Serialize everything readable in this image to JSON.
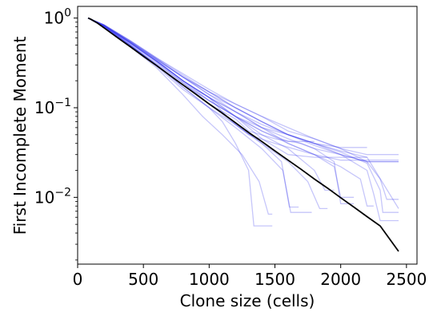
{
  "chart_data": {
    "type": "line",
    "title": "",
    "xlabel": "Clone size (cells)",
    "ylabel": "First Incomplete Moment",
    "xscale": "linear",
    "yscale": "log",
    "xlim": [
      0,
      2580
    ],
    "ylim": [
      0.0018,
      1.35
    ],
    "xticks": [
      0,
      500,
      1000,
      1500,
      2000,
      2500
    ],
    "xtick_labels": [
      "0",
      "500",
      "1000",
      "1500",
      "2000",
      "2500"
    ],
    "yticks": [
      1,
      0.1,
      0.01
    ],
    "ytick_labels": [
      {
        "base": "10",
        "exp": "0"
      },
      {
        "base": "10",
        "exp": "−1"
      },
      {
        "base": "10",
        "exp": "−2"
      }
    ],
    "grid": false,
    "legend": "none",
    "reference": {
      "color": "#000000",
      "x": [
        80,
        100,
        150,
        200,
        300,
        400,
        500,
        600,
        700,
        800,
        900,
        1000,
        1100,
        1200,
        1300,
        1400,
        1500,
        1600,
        1700,
        1800,
        1900,
        2000,
        2100,
        2200,
        2300,
        2440
      ],
      "y": [
        1.0,
        0.97,
        0.88,
        0.78,
        0.61,
        0.48,
        0.375,
        0.295,
        0.23,
        0.18,
        0.141,
        0.11,
        0.087,
        0.068,
        0.053,
        0.042,
        0.033,
        0.026,
        0.0205,
        0.016,
        0.0127,
        0.0099,
        0.0078,
        0.0061,
        0.0048,
        0.0025
      ]
    },
    "simulations": {
      "color": "#3333ee",
      "series": [
        {
          "x": [
            80,
            200,
            400,
            600,
            800,
            1000,
            1100,
            1200,
            1300,
            1340,
            1480
          ],
          "y": [
            1.0,
            0.8,
            0.5,
            0.3,
            0.17,
            0.1,
            0.07,
            0.04,
            0.02,
            0.0048,
            0.0048
          ]
        },
        {
          "x": [
            80,
            200,
            400,
            600,
            800,
            950,
            1100,
            1250,
            1380,
            1450,
            1480
          ],
          "y": [
            1.0,
            0.79,
            0.48,
            0.28,
            0.14,
            0.08,
            0.05,
            0.03,
            0.015,
            0.0065,
            0.0065
          ]
        },
        {
          "x": [
            80,
            200,
            400,
            600,
            800,
            1000,
            1200,
            1400,
            1560,
            1620,
            1780
          ],
          "y": [
            1.0,
            0.8,
            0.49,
            0.29,
            0.16,
            0.1,
            0.06,
            0.035,
            0.02,
            0.0068,
            0.0068
          ]
        },
        {
          "x": [
            80,
            200,
            400,
            600,
            800,
            1000,
            1200,
            1400,
            1550,
            1610,
            1680
          ],
          "y": [
            1.0,
            0.82,
            0.52,
            0.32,
            0.19,
            0.11,
            0.065,
            0.04,
            0.025,
            0.0078,
            0.0078
          ]
        },
        {
          "x": [
            80,
            200,
            400,
            600,
            800,
            1000,
            1200,
            1400,
            1600,
            1750,
            1840,
            1900
          ],
          "y": [
            1.0,
            0.81,
            0.5,
            0.3,
            0.17,
            0.1,
            0.065,
            0.04,
            0.025,
            0.015,
            0.0075,
            0.0075
          ]
        },
        {
          "x": [
            80,
            200,
            400,
            600,
            800,
            1000,
            1200,
            1400,
            1600,
            1800,
            1880,
            1950
          ],
          "y": [
            1.0,
            0.8,
            0.5,
            0.31,
            0.19,
            0.12,
            0.08,
            0.05,
            0.035,
            0.02,
            0.012,
            0.012
          ]
        },
        {
          "x": [
            80,
            200,
            400,
            600,
            800,
            1000,
            1200,
            1400,
            1600,
            1800,
            1950,
            2000,
            2100
          ],
          "y": [
            1.0,
            0.82,
            0.53,
            0.33,
            0.2,
            0.13,
            0.09,
            0.06,
            0.04,
            0.03,
            0.022,
            0.01,
            0.01
          ]
        },
        {
          "x": [
            80,
            200,
            400,
            600,
            800,
            1000,
            1200,
            1400,
            1600,
            1800,
            2000,
            2150,
            2200,
            2250
          ],
          "y": [
            1.0,
            0.83,
            0.54,
            0.34,
            0.2,
            0.13,
            0.08,
            0.055,
            0.04,
            0.03,
            0.022,
            0.016,
            0.008,
            0.008
          ]
        },
        {
          "x": [
            80,
            200,
            400,
            600,
            800,
            1000,
            1200,
            1400,
            1600,
            1800,
            2000,
            2200,
            2250,
            2300,
            2440
          ],
          "y": [
            1.0,
            0.82,
            0.53,
            0.33,
            0.2,
            0.13,
            0.09,
            0.065,
            0.05,
            0.04,
            0.03,
            0.02,
            0.011,
            0.0055,
            0.0055
          ]
        },
        {
          "x": [
            80,
            200,
            400,
            600,
            800,
            1000,
            1200,
            1400,
            1600,
            1800,
            2000,
            2200,
            2300,
            2320,
            2440
          ],
          "y": [
            1.0,
            0.84,
            0.55,
            0.35,
            0.22,
            0.14,
            0.1,
            0.07,
            0.05,
            0.04,
            0.032,
            0.024,
            0.012,
            0.0068,
            0.0068
          ]
        },
        {
          "x": [
            80,
            200,
            400,
            600,
            800,
            1000,
            1200,
            1400,
            1600,
            1800,
            2000,
            2200,
            2300,
            2350,
            2440
          ],
          "y": [
            1.0,
            0.83,
            0.54,
            0.35,
            0.22,
            0.15,
            0.11,
            0.08,
            0.055,
            0.045,
            0.035,
            0.025,
            0.016,
            0.0095,
            0.0095
          ]
        },
        {
          "x": [
            80,
            200,
            400,
            600,
            800,
            1000,
            1200,
            1400,
            1600,
            1800,
            2000,
            2200,
            2440
          ],
          "y": [
            1.0,
            0.84,
            0.56,
            0.36,
            0.23,
            0.15,
            0.1,
            0.07,
            0.05,
            0.04,
            0.033,
            0.028,
            0.0075
          ]
        },
        {
          "x": [
            80,
            200,
            400,
            600,
            800,
            1000,
            1100,
            1200,
            1300,
            1500,
            1700,
            1800,
            2000,
            2200,
            2440
          ],
          "y": [
            1.0,
            0.82,
            0.53,
            0.33,
            0.2,
            0.13,
            0.09,
            0.065,
            0.05,
            0.04,
            0.033,
            0.03,
            0.026,
            0.026,
            0.026
          ]
        },
        {
          "x": [
            80,
            200,
            400,
            600,
            800,
            1000,
            1200,
            1400,
            1600,
            1800,
            2000,
            2200,
            2440
          ],
          "y": [
            1.0,
            0.83,
            0.54,
            0.34,
            0.22,
            0.14,
            0.09,
            0.06,
            0.045,
            0.035,
            0.03,
            0.025,
            0.025
          ]
        },
        {
          "x": [
            80,
            200,
            400,
            600,
            800,
            1000,
            1200,
            1400,
            1600,
            1800,
            2000,
            2200
          ],
          "y": [
            1.0,
            0.82,
            0.52,
            0.33,
            0.2,
            0.13,
            0.08,
            0.045,
            0.03,
            0.028,
            0.028,
            0.028
          ]
        },
        {
          "x": [
            80,
            200,
            400,
            600,
            800,
            1000,
            1200,
            1400,
            1600,
            1800,
            2000,
            2200,
            2440
          ],
          "y": [
            1.0,
            0.84,
            0.56,
            0.36,
            0.24,
            0.16,
            0.11,
            0.08,
            0.06,
            0.045,
            0.035,
            0.03,
            0.03
          ]
        },
        {
          "x": [
            80,
            200,
            400,
            600,
            800,
            1000,
            1200,
            1400,
            1600,
            1800,
            2000,
            2200,
            2440
          ],
          "y": [
            1.0,
            0.83,
            0.55,
            0.35,
            0.22,
            0.15,
            0.1,
            0.07,
            0.05,
            0.038,
            0.03,
            0.025,
            0.025
          ]
        },
        {
          "x": [
            80,
            200,
            400,
            600,
            800,
            1000,
            1200,
            1400,
            1600,
            1800,
            2000,
            2200
          ],
          "y": [
            1.0,
            0.82,
            0.53,
            0.33,
            0.2,
            0.12,
            0.08,
            0.06,
            0.05,
            0.04,
            0.036,
            0.036
          ]
        },
        {
          "x": [
            80,
            200,
            400,
            600,
            800,
            1000,
            1200,
            1400,
            1600,
            1800
          ],
          "y": [
            1.0,
            0.81,
            0.5,
            0.3,
            0.18,
            0.12,
            0.08,
            0.055,
            0.042,
            0.042
          ]
        },
        {
          "x": [
            80,
            200,
            400,
            600,
            800,
            1000,
            1200,
            1300,
            1500,
            1700,
            1800,
            1950,
            2000,
            2100
          ],
          "y": [
            1.0,
            0.8,
            0.5,
            0.3,
            0.18,
            0.11,
            0.075,
            0.055,
            0.045,
            0.04,
            0.035,
            0.025,
            0.0085,
            0.0085
          ]
        }
      ]
    }
  }
}
